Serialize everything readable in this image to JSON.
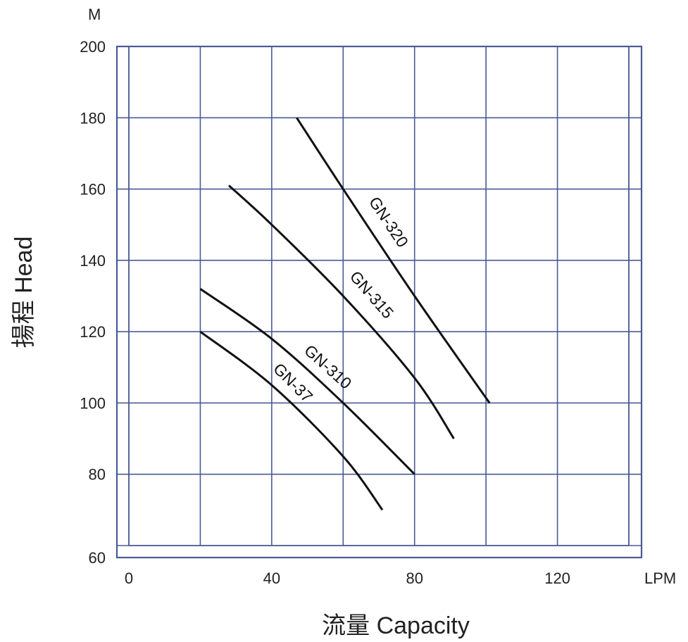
{
  "chart_data": {
    "type": "line",
    "xlabel": "流量 Capacity",
    "ylabel": "揚程 Head",
    "x_unit": "LPM",
    "y_unit": "M",
    "xlim": [
      0,
      140
    ],
    "ylim": [
      60,
      200
    ],
    "x_ticks": [
      0,
      40,
      80,
      120
    ],
    "y_ticks": [
      60,
      80,
      100,
      120,
      140,
      160,
      180,
      200
    ],
    "grid": true,
    "colors": {
      "grid": "#4a5a96",
      "curve": "#111111"
    },
    "series": [
      {
        "name": "GN-320",
        "x": [
          47,
          60,
          80,
          101
        ],
        "y": [
          180,
          160,
          130,
          100
        ]
      },
      {
        "name": "GN-315",
        "x": [
          28,
          40,
          60,
          80,
          91
        ],
        "y": [
          161,
          150,
          130,
          107,
          90
        ]
      },
      {
        "name": "GN-310",
        "x": [
          20,
          40,
          60,
          80
        ],
        "y": [
          132,
          118,
          100,
          80
        ]
      },
      {
        "name": "GN-37",
        "x": [
          20,
          40,
          60,
          71
        ],
        "y": [
          120,
          105,
          85,
          70
        ]
      }
    ]
  }
}
